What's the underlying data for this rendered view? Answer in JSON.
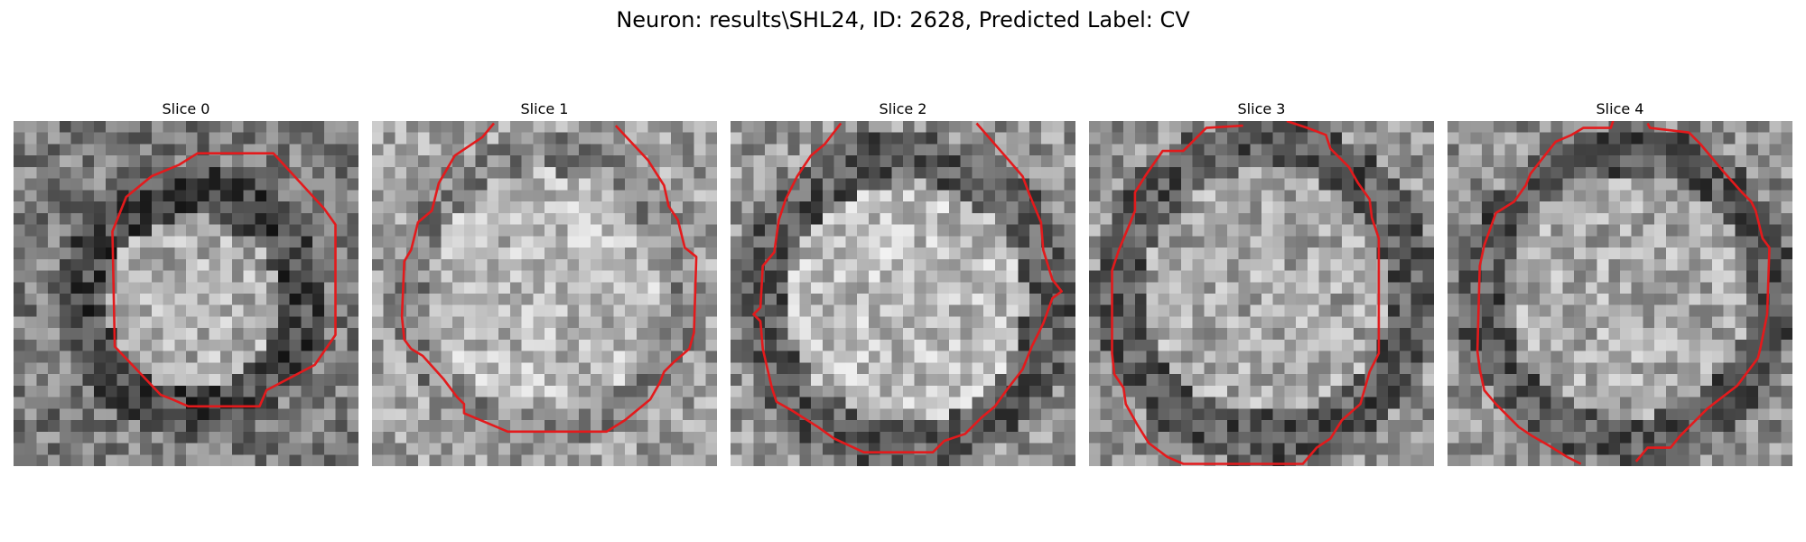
{
  "figure": {
    "title": "Neuron: results\\SHL24, ID: 2628, Predicted Label: CV"
  },
  "panels": [
    {
      "title": "Slice 0"
    },
    {
      "title": "Slice 1"
    },
    {
      "title": "Slice 2"
    },
    {
      "title": "Slice 3"
    },
    {
      "title": "Slice 4"
    }
  ],
  "colors": {
    "contour": "#e31a1c",
    "background": "#ffffff"
  }
}
